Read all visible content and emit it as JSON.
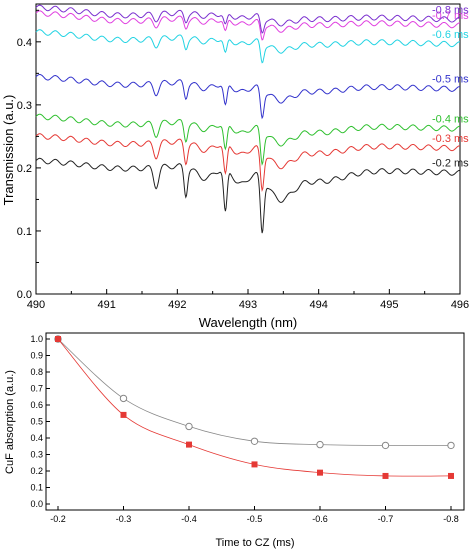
{
  "chart_data": [
    {
      "type": "line",
      "xlabel": "Wavelength (nm)",
      "ylabel": "Transmission (a.u.)",
      "xlim": [
        490,
        496
      ],
      "ylim": [
        0.0,
        0.46
      ],
      "xticks": [
        "490",
        "491",
        "492",
        "493",
        "494",
        "495",
        "496"
      ],
      "yticks": [
        "0.0",
        "0.1",
        "0.2",
        "0.3",
        "0.4"
      ],
      "grid": false,
      "legend": "inline labels at right end of each trace",
      "series": [
        {
          "name": "-0.2 ms",
          "color": "#222222",
          "base": 0.212,
          "depth": 1.0
        },
        {
          "name": "-0.3 ms",
          "color": "#e53935",
          "base": 0.251,
          "depth": 0.72
        },
        {
          "name": "-0.4 ms",
          "color": "#2fc02f",
          "base": 0.282,
          "depth": 0.62
        },
        {
          "name": "-0.5 ms",
          "color": "#3333cc",
          "base": 0.345,
          "depth": 0.52
        },
        {
          "name": "-0.6 ms",
          "color": "#22d3e3",
          "base": 0.416,
          "depth": 0.36
        },
        {
          "name": "-0.7 ms",
          "color": "#e040e0",
          "base": 0.446,
          "depth": 0.3
        },
        {
          "name": "-0.8 ms",
          "color": "#7a2fcf",
          "base": 0.455,
          "depth": 0.28
        }
      ]
    },
    {
      "type": "scatter",
      "xlabel": "Time to CZ (ms)",
      "ylabel": "CuF absorption (a.u.)",
      "xlim": [
        -0.2,
        -0.8
      ],
      "ylim": [
        0.0,
        1.0
      ],
      "categories": [
        "-0.2",
        "-0.3",
        "-0.4",
        "-0.5",
        "-0.6",
        "-0.7",
        "-0.8"
      ],
      "yticks": [
        "0.0",
        "0.1",
        "0.2",
        "0.3",
        "0.4",
        "0.5",
        "0.6",
        "0.7",
        "0.8",
        "0.9",
        "1.0"
      ],
      "series": [
        {
          "marker": "open-circle",
          "color": "#888888",
          "values": [
            1.0,
            0.64,
            0.47,
            0.38,
            0.36,
            0.355,
            0.355
          ]
        },
        {
          "marker": "filled-square",
          "color": "#e53935",
          "values": [
            1.0,
            0.54,
            0.36,
            0.24,
            0.19,
            0.17,
            0.17
          ]
        }
      ]
    }
  ]
}
